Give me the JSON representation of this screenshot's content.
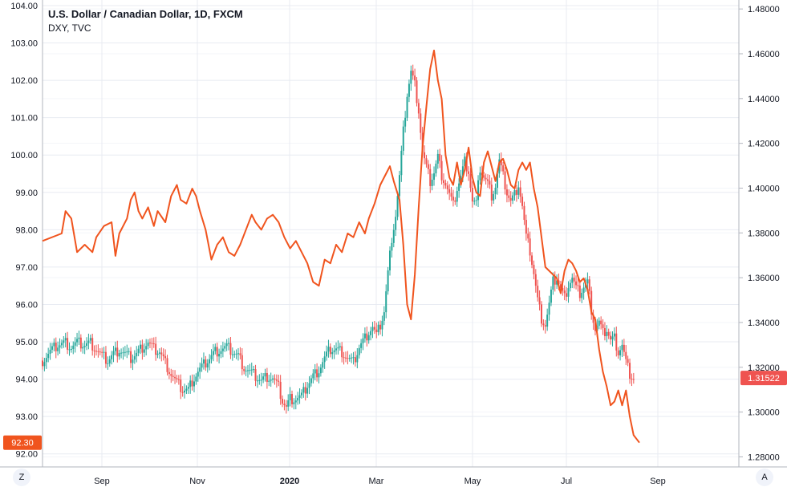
{
  "header": {
    "title": "U.S. Dollar / Canadian Dollar, 1D, FXCM",
    "subtitle": "DXY, TVC"
  },
  "corners": {
    "left": "Z",
    "right": "A"
  },
  "colors": {
    "up": "#26a69a",
    "down": "#ef5350",
    "dxy_line": "#f0541e",
    "grid": "#e8ebf2",
    "dxy_badge": "#f0541e",
    "usdcad_badge": "#ef5350"
  },
  "chart_data": {
    "type": "line",
    "title": "U.S. Dollar / Canadian Dollar, 1D, FXCM",
    "x_ticks": [
      "Sep",
      "Nov",
      "2020",
      "Mar",
      "May",
      "Jul",
      "Sep"
    ],
    "left_axis": {
      "ticks": [
        "104.00",
        "103.00",
        "102.00",
        "101.00",
        "100.00",
        "99.00",
        "98.00",
        "97.00",
        "96.00",
        "95.00",
        "94.00",
        "93.00",
        "92.00"
      ],
      "range": [
        91.65,
        104.15
      ]
    },
    "right_axis": {
      "ticks": [
        "1.48000",
        "1.46000",
        "1.44000",
        "1.42000",
        "1.40000",
        "1.38000",
        "1.36000",
        "1.34000",
        "1.32000",
        "1.30000",
        "1.28000"
      ],
      "range": [
        1.2755,
        1.484
      ]
    },
    "last_values": {
      "dxy": "92.30",
      "usdcad": "1.31522"
    },
    "series": [
      {
        "name": "DXY, TVC",
        "axis": "left",
        "points": [
          [
            0,
            97.7
          ],
          [
            10,
            97.9
          ],
          [
            12,
            98.5
          ],
          [
            15,
            98.3
          ],
          [
            18,
            97.4
          ],
          [
            22,
            97.6
          ],
          [
            26,
            97.4
          ],
          [
            28,
            97.8
          ],
          [
            32,
            98.1
          ],
          [
            36,
            98.2
          ],
          [
            38,
            97.3
          ],
          [
            40,
            97.9
          ],
          [
            44,
            98.3
          ],
          [
            46,
            98.8
          ],
          [
            48,
            99.0
          ],
          [
            50,
            98.5
          ],
          [
            52,
            98.3
          ],
          [
            55,
            98.6
          ],
          [
            58,
            98.1
          ],
          [
            60,
            98.5
          ],
          [
            64,
            98.2
          ],
          [
            67,
            98.9
          ],
          [
            70,
            99.2
          ],
          [
            72,
            98.8
          ],
          [
            75,
            98.7
          ],
          [
            78,
            99.1
          ],
          [
            80,
            98.9
          ],
          [
            82,
            98.5
          ],
          [
            85,
            98.0
          ],
          [
            88,
            97.2
          ],
          [
            91,
            97.6
          ],
          [
            94,
            97.8
          ],
          [
            97,
            97.4
          ],
          [
            100,
            97.3
          ],
          [
            103,
            97.6
          ],
          [
            106,
            98.0
          ],
          [
            109,
            98.4
          ],
          [
            111,
            98.2
          ],
          [
            114,
            98.0
          ],
          [
            117,
            98.3
          ],
          [
            120,
            98.4
          ],
          [
            123,
            98.2
          ],
          [
            126,
            97.8
          ],
          [
            129,
            97.5
          ],
          [
            132,
            97.7
          ],
          [
            135,
            97.4
          ],
          [
            138,
            97.1
          ],
          [
            141,
            96.6
          ],
          [
            144,
            96.5
          ],
          [
            147,
            97.2
          ],
          [
            150,
            97.1
          ],
          [
            153,
            97.6
          ],
          [
            156,
            97.4
          ],
          [
            159,
            97.9
          ],
          [
            162,
            97.8
          ],
          [
            165,
            98.2
          ],
          [
            168,
            97.9
          ],
          [
            170,
            98.3
          ],
          [
            173,
            98.7
          ],
          [
            176,
            99.2
          ],
          [
            179,
            99.5
          ],
          [
            181,
            99.7
          ],
          [
            183,
            99.3
          ],
          [
            186,
            98.8
          ],
          [
            188,
            97.6
          ],
          [
            190,
            96.0
          ],
          [
            192,
            95.6
          ],
          [
            194,
            96.8
          ],
          [
            196,
            98.6
          ],
          [
            198,
            100.2
          ],
          [
            200,
            101.3
          ],
          [
            202,
            102.3
          ],
          [
            204,
            102.8
          ],
          [
            206,
            102.0
          ],
          [
            208,
            101.5
          ],
          [
            210,
            100.0
          ],
          [
            212,
            99.4
          ],
          [
            214,
            99.2
          ],
          [
            216,
            99.8
          ],
          [
            218,
            99.2
          ],
          [
            220,
            99.6
          ],
          [
            222,
            100.2
          ],
          [
            224,
            99.4
          ],
          [
            226,
            99.0
          ],
          [
            228,
            98.9
          ],
          [
            230,
            99.8
          ],
          [
            232,
            100.1
          ],
          [
            234,
            99.7
          ],
          [
            236,
            99.3
          ],
          [
            238,
            99.8
          ],
          [
            240,
            99.9
          ],
          [
            242,
            99.6
          ],
          [
            244,
            99.2
          ],
          [
            246,
            99.1
          ],
          [
            248,
            99.6
          ],
          [
            250,
            99.8
          ],
          [
            252,
            99.6
          ],
          [
            254,
            99.8
          ],
          [
            256,
            99.1
          ],
          [
            258,
            98.6
          ],
          [
            260,
            97.8
          ],
          [
            262,
            97.0
          ],
          [
            264,
            96.9
          ],
          [
            266,
            96.8
          ],
          [
            268,
            96.7
          ],
          [
            270,
            96.3
          ],
          [
            272,
            96.9
          ],
          [
            274,
            97.2
          ],
          [
            276,
            97.1
          ],
          [
            278,
            96.9
          ],
          [
            280,
            96.6
          ],
          [
            282,
            96.7
          ],
          [
            284,
            96.4
          ],
          [
            286,
            95.8
          ],
          [
            288,
            95.6
          ],
          [
            290,
            94.8
          ],
          [
            292,
            94.2
          ],
          [
            294,
            93.8
          ],
          [
            296,
            93.3
          ],
          [
            298,
            93.4
          ],
          [
            300,
            93.7
          ],
          [
            302,
            93.3
          ],
          [
            304,
            93.7
          ],
          [
            306,
            93.0
          ],
          [
            308,
            92.5
          ],
          [
            311,
            92.3
          ]
        ]
      },
      {
        "name": "U.S. Dollar / Canadian Dollar",
        "axis": "right",
        "points": [
          [
            0,
            1.323
          ],
          [
            4,
            1.327
          ],
          [
            8,
            1.33
          ],
          [
            12,
            1.331
          ],
          [
            15,
            1.329
          ],
          [
            18,
            1.331
          ],
          [
            22,
            1.33
          ],
          [
            25,
            1.331
          ],
          [
            28,
            1.328
          ],
          [
            31,
            1.325
          ],
          [
            34,
            1.323
          ],
          [
            37,
            1.326
          ],
          [
            40,
            1.328
          ],
          [
            43,
            1.326
          ],
          [
            46,
            1.324
          ],
          [
            49,
            1.326
          ],
          [
            52,
            1.329
          ],
          [
            55,
            1.331
          ],
          [
            58,
            1.328
          ],
          [
            61,
            1.327
          ],
          [
            64,
            1.322
          ],
          [
            67,
            1.317
          ],
          [
            70,
            1.313
          ],
          [
            73,
            1.31
          ],
          [
            76,
            1.31
          ],
          [
            78,
            1.314
          ],
          [
            81,
            1.318
          ],
          [
            84,
            1.321
          ],
          [
            87,
            1.324
          ],
          [
            90,
            1.327
          ],
          [
            93,
            1.328
          ],
          [
            96,
            1.329
          ],
          [
            99,
            1.327
          ],
          [
            102,
            1.325
          ],
          [
            105,
            1.32
          ],
          [
            108,
            1.318
          ],
          [
            111,
            1.316
          ],
          [
            114,
            1.314
          ],
          [
            117,
            1.316
          ],
          [
            120,
            1.315
          ],
          [
            123,
            1.311
          ],
          [
            125,
            1.305
          ],
          [
            127,
            1.302
          ],
          [
            129,
            1.306
          ],
          [
            132,
            1.306
          ],
          [
            135,
            1.307
          ],
          [
            138,
            1.312
          ],
          [
            141,
            1.316
          ],
          [
            144,
            1.319
          ],
          [
            147,
            1.324
          ],
          [
            150,
            1.328
          ],
          [
            153,
            1.328
          ],
          [
            156,
            1.327
          ],
          [
            159,
            1.324
          ],
          [
            162,
            1.322
          ],
          [
            165,
            1.329
          ],
          [
            168,
            1.333
          ],
          [
            170,
            1.336
          ],
          [
            172,
            1.338
          ],
          [
            174,
            1.334
          ],
          [
            176,
            1.339
          ],
          [
            178,
            1.345
          ],
          [
            180,
            1.362
          ],
          [
            182,
            1.378
          ],
          [
            184,
            1.388
          ],
          [
            186,
            1.405
          ],
          [
            188,
            1.425
          ],
          [
            190,
            1.442
          ],
          [
            192,
            1.452
          ],
          [
            194,
            1.446
          ],
          [
            196,
            1.435
          ],
          [
            198,
            1.416
          ],
          [
            200,
            1.409
          ],
          [
            202,
            1.403
          ],
          [
            204,
            1.407
          ],
          [
            206,
            1.414
          ],
          [
            208,
            1.406
          ],
          [
            210,
            1.402
          ],
          [
            212,
            1.397
          ],
          [
            214,
            1.392
          ],
          [
            216,
            1.4
          ],
          [
            218,
            1.405
          ],
          [
            220,
            1.412
          ],
          [
            222,
            1.408
          ],
          [
            224,
            1.394
          ],
          [
            226,
            1.393
          ],
          [
            228,
            1.409
          ],
          [
            230,
            1.405
          ],
          [
            232,
            1.402
          ],
          [
            234,
            1.397
          ],
          [
            236,
            1.401
          ],
          [
            238,
            1.412
          ],
          [
            240,
            1.405
          ],
          [
            242,
            1.398
          ],
          [
            244,
            1.394
          ],
          [
            246,
            1.397
          ],
          [
            248,
            1.402
          ],
          [
            250,
            1.392
          ],
          [
            252,
            1.378
          ],
          [
            254,
            1.372
          ],
          [
            256,
            1.362
          ],
          [
            258,
            1.35
          ],
          [
            260,
            1.342
          ],
          [
            262,
            1.339
          ],
          [
            264,
            1.348
          ],
          [
            266,
            1.358
          ],
          [
            268,
            1.36
          ],
          [
            270,
            1.355
          ],
          [
            272,
            1.351
          ],
          [
            274,
            1.357
          ],
          [
            276,
            1.36
          ],
          [
            278,
            1.355
          ],
          [
            280,
            1.353
          ],
          [
            282,
            1.356
          ],
          [
            284,
            1.358
          ],
          [
            286,
            1.346
          ],
          [
            288,
            1.337
          ],
          [
            290,
            1.34
          ],
          [
            292,
            1.335
          ],
          [
            294,
            1.337
          ],
          [
            296,
            1.332
          ],
          [
            298,
            1.333
          ],
          [
            300,
            1.327
          ],
          [
            302,
            1.33
          ],
          [
            304,
            1.322
          ],
          [
            306,
            1.317
          ],
          [
            308,
            1.315
          ]
        ]
      }
    ]
  }
}
